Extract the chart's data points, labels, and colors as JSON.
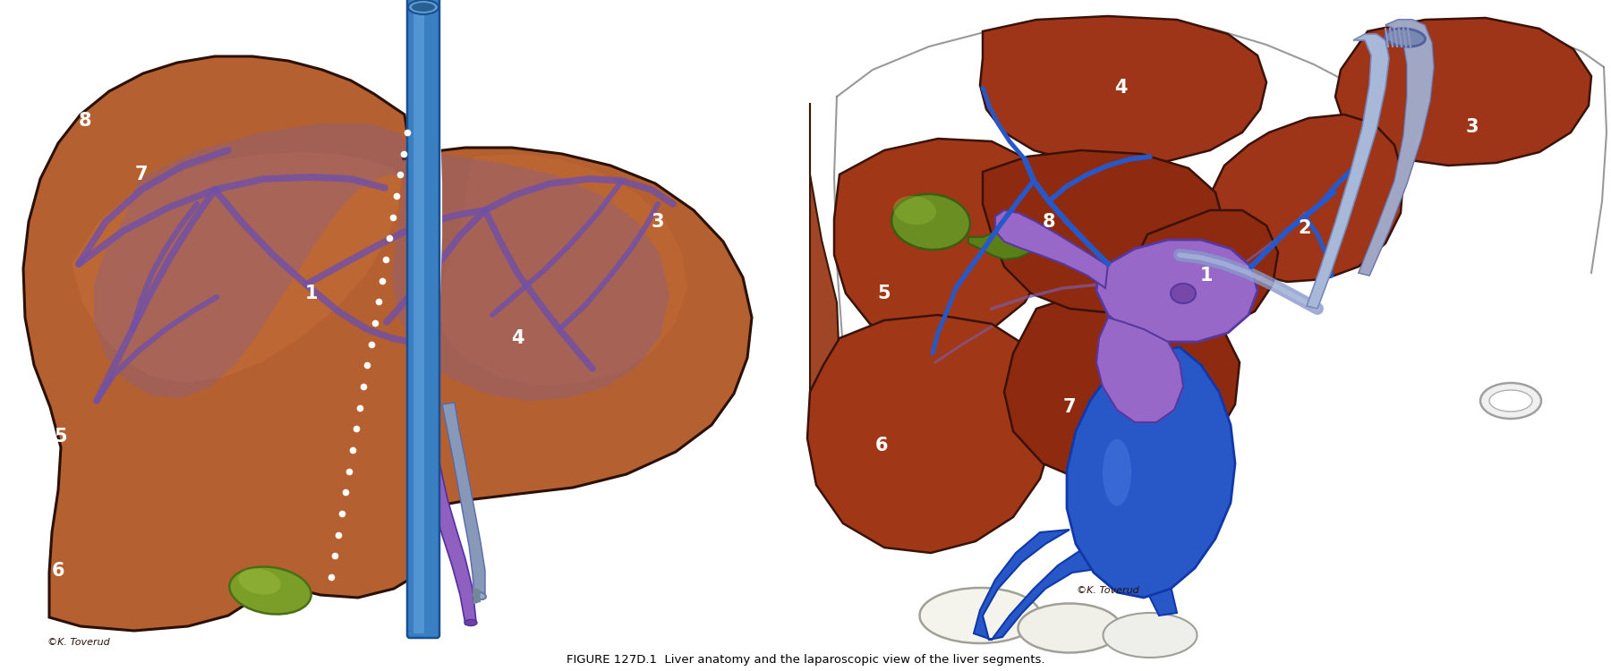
{
  "figure_width": 18.0,
  "figure_height": 7.5,
  "dpi": 100,
  "bg_color": "#ffffff",
  "caption_text": "FIGURE 127D.1  Liver anatomy and the laparoscopic view of the liver segments.",
  "liver_brown": "#b5622a",
  "liver_mid": "#a85225",
  "liver_dark": "#8b3518",
  "liver_light": "#c87840",
  "purple_vessel": "#8060b0",
  "blue_vessel": "#3a7fc1",
  "blue_dark": "#2255a0",
  "gallbladder_green": "#6a8e22",
  "pink_area": "#d4a0b0"
}
